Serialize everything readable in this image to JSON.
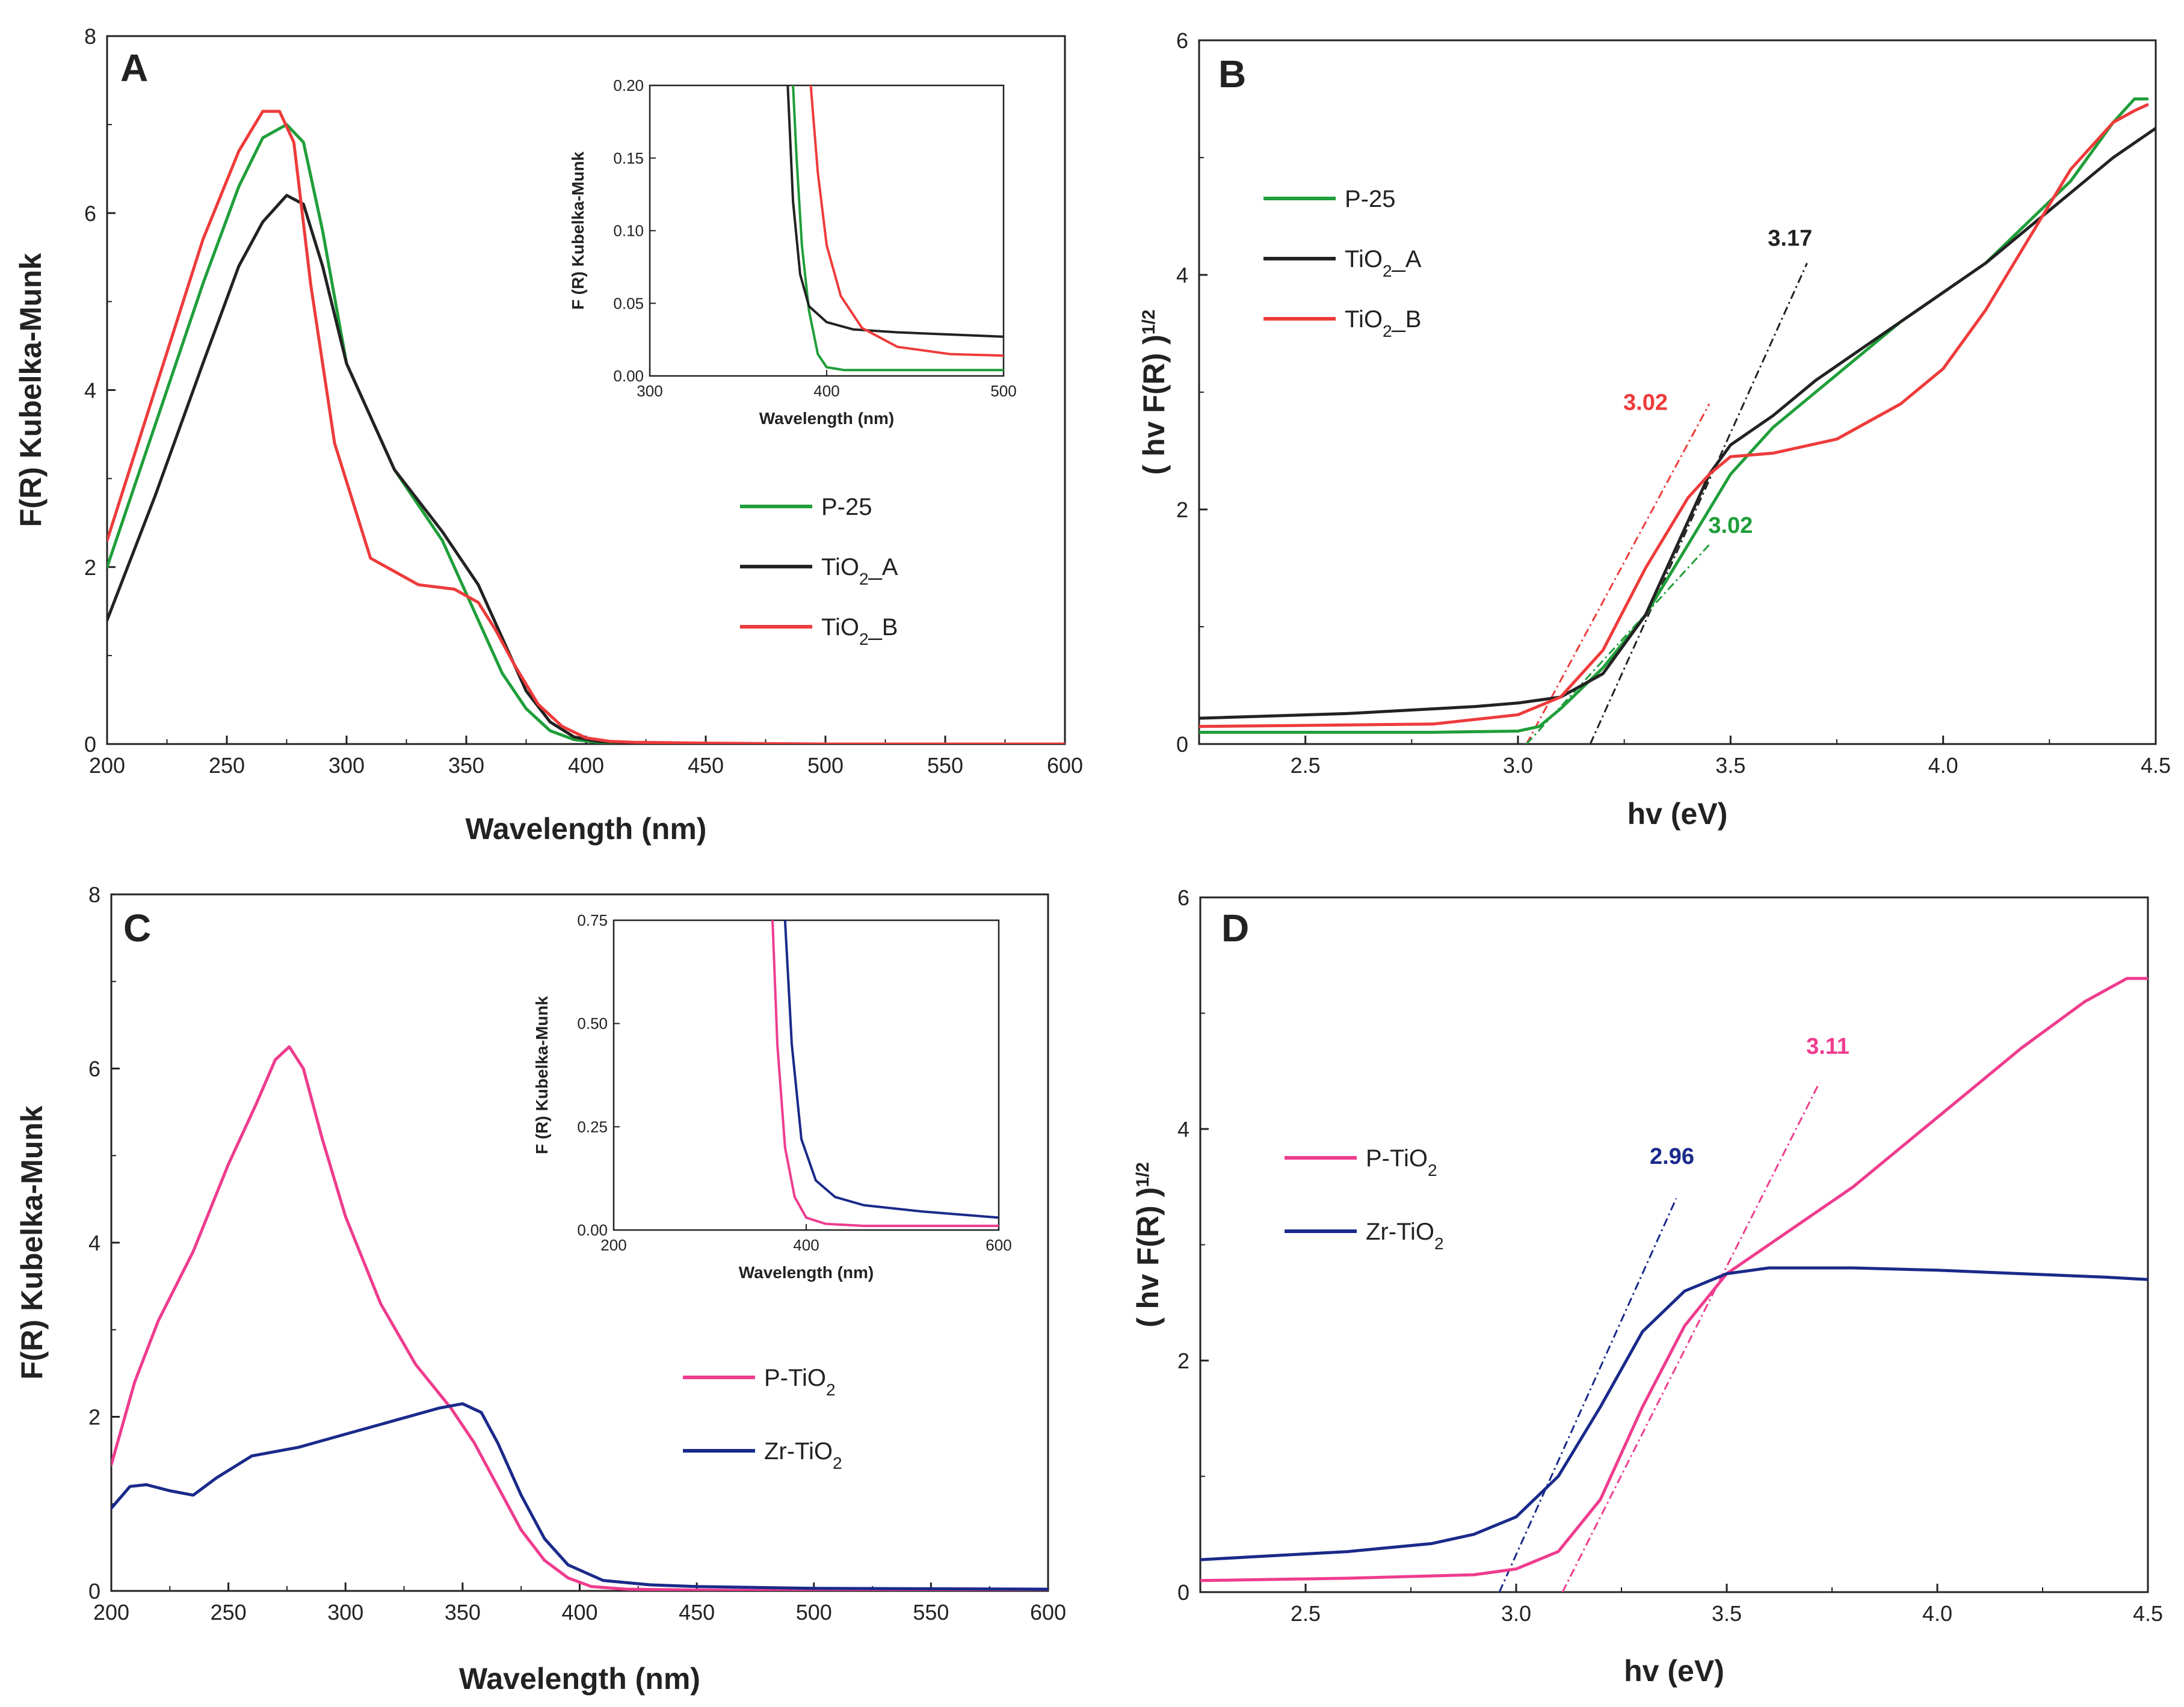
{
  "chart_data": [
    {
      "panel": "A",
      "type": "line",
      "xlabel": "Wavelength (nm)",
      "ylabel": "F(R) Kubelka-Munk",
      "xlim": [
        200,
        600
      ],
      "ylim": [
        0,
        8
      ],
      "xticks": [
        200,
        250,
        300,
        350,
        400,
        450,
        500,
        550,
        600
      ],
      "yticks": [
        0,
        2,
        4,
        6,
        8
      ],
      "legend": {
        "position": "center-right",
        "entries": [
          {
            "label": "P-25",
            "color": "#1f9e3a"
          },
          {
            "label": "TiO₂_A",
            "color": "#222222"
          },
          {
            "label": "TiO₂_B",
            "color": "#ee3b3b"
          }
        ]
      },
      "series": [
        {
          "name": "P-25",
          "color": "#1f9e3a",
          "x": [
            200,
            220,
            240,
            255,
            265,
            275,
            282,
            290,
            300,
            320,
            340,
            355,
            365,
            375,
            385,
            395,
            405,
            420,
            450,
            500,
            600
          ],
          "y": [
            2.0,
            3.6,
            5.2,
            6.3,
            6.85,
            7.0,
            6.8,
            5.8,
            4.3,
            3.1,
            2.3,
            1.4,
            0.8,
            0.4,
            0.15,
            0.05,
            0.02,
            0.01,
            0.0,
            0.0,
            0.0
          ]
        },
        {
          "name": "TiO₂_A",
          "color": "#222222",
          "x": [
            200,
            220,
            240,
            255,
            265,
            275,
            282,
            290,
            300,
            320,
            340,
            355,
            365,
            375,
            385,
            395,
            405,
            420,
            450,
            500,
            600
          ],
          "y": [
            1.4,
            2.8,
            4.3,
            5.4,
            5.9,
            6.2,
            6.1,
            5.4,
            4.3,
            3.1,
            2.4,
            1.8,
            1.2,
            0.6,
            0.25,
            0.08,
            0.03,
            0.01,
            0.0,
            0.0,
            0.0
          ]
        },
        {
          "name": "TiO₂_B",
          "color": "#ee3b3b",
          "x": [
            200,
            220,
            240,
            255,
            265,
            272,
            278,
            285,
            295,
            310,
            330,
            345,
            355,
            362,
            370,
            380,
            390,
            400,
            410,
            420,
            450,
            500,
            600
          ],
          "y": [
            2.3,
            4.0,
            5.7,
            6.7,
            7.15,
            7.15,
            6.8,
            5.2,
            3.4,
            2.1,
            1.8,
            1.75,
            1.6,
            1.3,
            0.9,
            0.45,
            0.2,
            0.07,
            0.03,
            0.02,
            0.01,
            0.0,
            0.0
          ]
        }
      ],
      "inset": {
        "xlabel": "Wavelength (nm)",
        "ylabel": "F (R) Kubelka-Munk",
        "xlim": [
          300,
          500
        ],
        "ylim": [
          0,
          0.2
        ],
        "xticks": [
          300,
          400,
          500
        ],
        "yticks": [
          "0.00",
          "0.05",
          "0.10",
          "0.15",
          "0.20"
        ],
        "series": [
          {
            "name": "P-25",
            "color": "#1f9e3a",
            "x": [
              381,
              383,
              386,
              390,
              395,
              400,
              410,
              430,
              500
            ],
            "y": [
              0.2,
              0.15,
              0.09,
              0.045,
              0.015,
              0.006,
              0.004,
              0.004,
              0.004
            ]
          },
          {
            "name": "TiO₂_A",
            "color": "#222222",
            "x": [
              378,
              381,
              385,
              390,
              400,
              415,
              440,
              500
            ],
            "y": [
              0.2,
              0.12,
              0.07,
              0.048,
              0.037,
              0.032,
              0.03,
              0.027
            ]
          },
          {
            "name": "TiO₂_B",
            "color": "#ee3b3b",
            "x": [
              391,
              395,
              400,
              408,
              420,
              440,
              470,
              500
            ],
            "y": [
              0.2,
              0.14,
              0.09,
              0.055,
              0.033,
              0.02,
              0.015,
              0.014
            ]
          }
        ]
      }
    },
    {
      "panel": "B",
      "type": "line",
      "xlabel": "hv (eV)",
      "ylabel": "( hv F(R) )",
      "ylabel_sup": "1/2",
      "xlim": [
        2.25,
        4.5
      ],
      "ylim": [
        0,
        6
      ],
      "xticks": [
        "2.5",
        "3.0",
        "3.5",
        "4.0",
        "4.5"
      ],
      "yticks": [
        0,
        2,
        4,
        6
      ],
      "legend": {
        "position": "upper-left",
        "entries": [
          {
            "label": "P-25",
            "color": "#1f9e3a"
          },
          {
            "label": "TiO₂_A",
            "color": "#222222"
          },
          {
            "label": "TiO₂_B",
            "color": "#ee3b3b"
          }
        ]
      },
      "series": [
        {
          "name": "P-25",
          "color": "#1f9e3a",
          "x": [
            2.25,
            2.8,
            3.0,
            3.05,
            3.1,
            3.2,
            3.3,
            3.4,
            3.5,
            3.6,
            3.7,
            3.9,
            4.1,
            4.3,
            4.4,
            4.45,
            4.48
          ],
          "y": [
            0.1,
            0.1,
            0.11,
            0.15,
            0.3,
            0.65,
            1.1,
            1.7,
            2.3,
            2.7,
            3.0,
            3.6,
            4.1,
            4.8,
            5.3,
            5.5,
            5.5
          ]
        },
        {
          "name": "TiO₂_A",
          "color": "#222222",
          "x": [
            2.25,
            2.6,
            2.9,
            3.0,
            3.1,
            3.2,
            3.3,
            3.4,
            3.45,
            3.5,
            3.6,
            3.7,
            3.9,
            4.1,
            4.3,
            4.4,
            4.5
          ],
          "y": [
            0.22,
            0.26,
            0.32,
            0.35,
            0.4,
            0.6,
            1.1,
            1.9,
            2.3,
            2.55,
            2.8,
            3.1,
            3.6,
            4.1,
            4.7,
            5.0,
            5.25
          ]
        },
        {
          "name": "TiO₂_B",
          "color": "#ee3b3b",
          "x": [
            2.25,
            2.8,
            3.0,
            3.1,
            3.2,
            3.3,
            3.4,
            3.45,
            3.5,
            3.6,
            3.75,
            3.9,
            4.0,
            4.1,
            4.2,
            4.3,
            4.4,
            4.45,
            4.48
          ],
          "y": [
            0.15,
            0.17,
            0.25,
            0.4,
            0.8,
            1.5,
            2.1,
            2.3,
            2.45,
            2.48,
            2.6,
            2.9,
            3.2,
            3.7,
            4.3,
            4.9,
            5.3,
            5.4,
            5.45
          ]
        }
      ],
      "fits": [
        {
          "color": "#222222",
          "x": [
            3.17,
            3.68
          ],
          "y": [
            0.0,
            4.1
          ]
        },
        {
          "color": "#ee3b3b",
          "x": [
            3.02,
            3.45
          ],
          "y": [
            0.0,
            2.9
          ]
        },
        {
          "color": "#1f9e3a",
          "x": [
            3.02,
            3.45
          ],
          "y": [
            0.0,
            1.7
          ]
        }
      ],
      "annotations": [
        {
          "text": "3.17",
          "color": "#222222",
          "x": 3.64,
          "y": 4.25
        },
        {
          "text": "3.02",
          "color": "#ee3b3b",
          "x": 3.3,
          "y": 2.85
        },
        {
          "text": "3.02",
          "color": "#1f9e3a",
          "x": 3.5,
          "y": 1.8
        }
      ]
    },
    {
      "panel": "C",
      "type": "line",
      "xlabel": "Wavelength (nm)",
      "ylabel": "F(R) Kubelka-Munk",
      "xlim": [
        200,
        600
      ],
      "ylim": [
        0,
        8
      ],
      "xticks": [
        200,
        250,
        300,
        350,
        400,
        450,
        500,
        550,
        600
      ],
      "yticks": [
        0,
        2,
        4,
        6,
        8
      ],
      "legend": {
        "position": "lower-right",
        "entries": [
          {
            "label": "P-TiO₂",
            "color": "#ee3c8e"
          },
          {
            "label": "Zr-TiO₂",
            "color": "#1a2a8a"
          }
        ]
      },
      "series": [
        {
          "name": "P-TiO₂",
          "color": "#ee3c8e",
          "x": [
            200,
            210,
            220,
            235,
            250,
            262,
            270,
            276,
            282,
            290,
            300,
            315,
            330,
            345,
            355,
            365,
            375,
            385,
            395,
            405,
            420,
            450,
            500,
            600
          ],
          "y": [
            1.45,
            2.4,
            3.1,
            3.9,
            4.9,
            5.6,
            6.1,
            6.25,
            6.0,
            5.2,
            4.3,
            3.3,
            2.6,
            2.1,
            1.7,
            1.2,
            0.7,
            0.35,
            0.15,
            0.05,
            0.02,
            0.01,
            0.0,
            0.0
          ]
        },
        {
          "name": "Zr-TiO₂",
          "color": "#1a2a8a",
          "x": [
            200,
            208,
            215,
            225,
            235,
            245,
            260,
            280,
            300,
            320,
            340,
            350,
            358,
            365,
            375,
            385,
            395,
            410,
            430,
            450,
            500,
            600
          ],
          "y": [
            0.95,
            1.2,
            1.22,
            1.15,
            1.1,
            1.3,
            1.55,
            1.65,
            1.8,
            1.95,
            2.1,
            2.15,
            2.05,
            1.7,
            1.1,
            0.6,
            0.3,
            0.12,
            0.07,
            0.05,
            0.03,
            0.02
          ]
        }
      ],
      "inset": {
        "xlabel": "Wavelength (nm)",
        "ylabel": "F (R) Kubelka-Munk",
        "xlim": [
          200,
          600
        ],
        "ylim": [
          0,
          0.75
        ],
        "xticks": [
          200,
          400,
          600
        ],
        "yticks": [
          "0.00",
          "0.25",
          "0.50",
          "0.75"
        ],
        "series": [
          {
            "name": "P-TiO₂",
            "color": "#ee3c8e",
            "x": [
              365,
              370,
              378,
              388,
              400,
              420,
              460,
              600
            ],
            "y": [
              0.75,
              0.45,
              0.2,
              0.08,
              0.03,
              0.015,
              0.01,
              0.01
            ]
          },
          {
            "name": "Zr-TiO₂",
            "color": "#1a2a8a",
            "x": [
              378,
              385,
              395,
              410,
              430,
              460,
              520,
              600
            ],
            "y": [
              0.75,
              0.45,
              0.22,
              0.12,
              0.08,
              0.06,
              0.045,
              0.03
            ]
          }
        ]
      }
    },
    {
      "panel": "D",
      "type": "line",
      "xlabel": "hv (eV)",
      "ylabel": "( hv F(R) )",
      "ylabel_sup": "1/2",
      "xlim": [
        2.25,
        4.5
      ],
      "ylim": [
        0,
        6
      ],
      "xticks": [
        "2.5",
        "3.0",
        "3.5",
        "4.0",
        "4.5"
      ],
      "yticks": [
        0,
        2,
        4,
        6
      ],
      "legend": {
        "position": "center-left",
        "entries": [
          {
            "label": "P-TiO₂",
            "color": "#ee3c8e"
          },
          {
            "label": "Zr-TiO₂",
            "color": "#1a2a8a"
          }
        ]
      },
      "series": [
        {
          "name": "P-TiO₂",
          "color": "#ee3c8e",
          "x": [
            2.25,
            2.6,
            2.9,
            3.0,
            3.1,
            3.2,
            3.3,
            3.4,
            3.5,
            3.6,
            3.8,
            4.0,
            4.2,
            4.35,
            4.45,
            4.5
          ],
          "y": [
            0.1,
            0.12,
            0.15,
            0.2,
            0.35,
            0.8,
            1.6,
            2.3,
            2.75,
            3.0,
            3.5,
            4.1,
            4.7,
            5.1,
            5.3,
            5.3
          ]
        },
        {
          "name": "Zr-TiO₂",
          "color": "#1a2a8a",
          "x": [
            2.25,
            2.6,
            2.8,
            2.9,
            3.0,
            3.1,
            3.2,
            3.3,
            3.4,
            3.5,
            3.6,
            3.8,
            4.0,
            4.2,
            4.4,
            4.5
          ],
          "y": [
            0.28,
            0.35,
            0.42,
            0.5,
            0.65,
            1.0,
            1.6,
            2.25,
            2.6,
            2.75,
            2.8,
            2.8,
            2.78,
            2.75,
            2.72,
            2.7
          ]
        }
      ],
      "fits": [
        {
          "color": "#1a2a8a",
          "x": [
            2.96,
            3.38
          ],
          "y": [
            0.0,
            3.4
          ]
        },
        {
          "color": "#ee3c8e",
          "x": [
            3.11,
            3.72
          ],
          "y": [
            0.0,
            4.4
          ]
        }
      ],
      "annotations": [
        {
          "text": "2.96",
          "color": "#1a2a8a",
          "x": 3.37,
          "y": 3.7
        },
        {
          "text": "3.11",
          "color": "#ee3c8e",
          "x": 3.74,
          "y": 4.65
        }
      ]
    }
  ]
}
